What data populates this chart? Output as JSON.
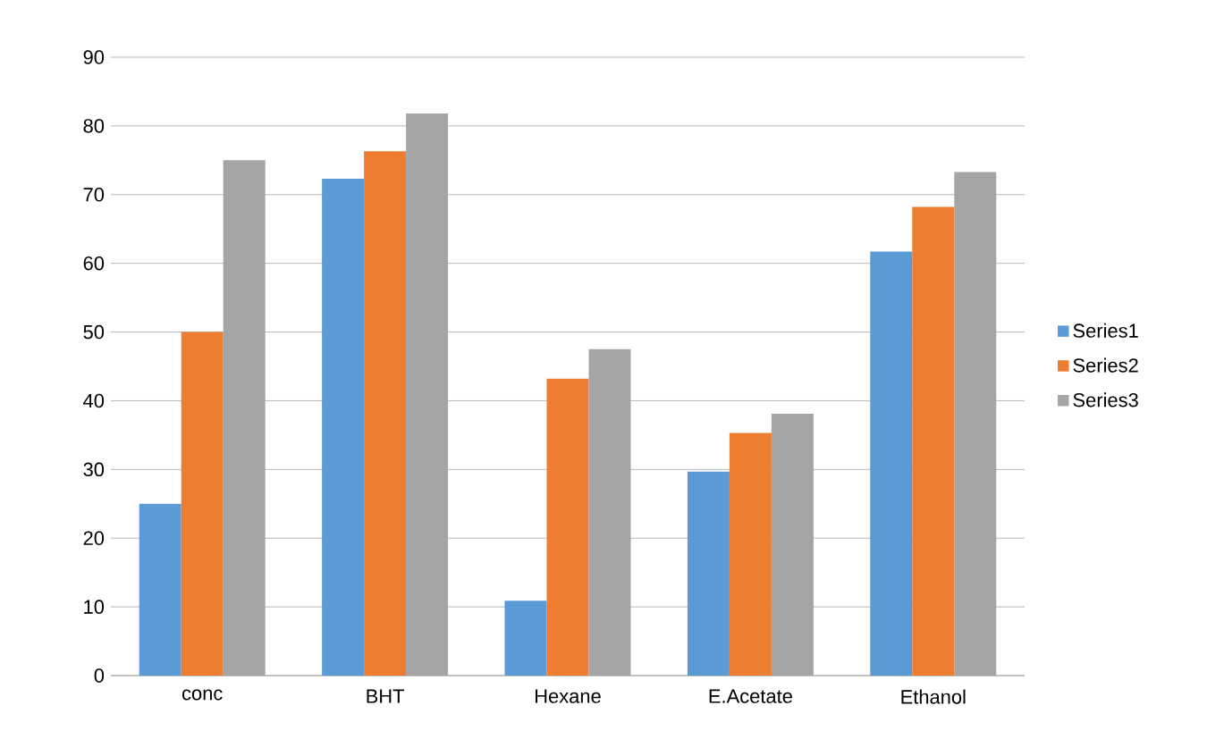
{
  "chart_data": {
    "type": "bar",
    "categories": [
      "conc",
      "BHT",
      "Hexane",
      "E.Acetate",
      "Ethanol"
    ],
    "series": [
      {
        "name": "Series1",
        "color": "#5b9bd5",
        "values": [
          25,
          72.3,
          10.9,
          29.7,
          61.7
        ]
      },
      {
        "name": "Series2",
        "color": "#ed7d31",
        "values": [
          50,
          76.3,
          43.2,
          35.3,
          68.2
        ]
      },
      {
        "name": "Series3",
        "color": "#a5a5a5",
        "values": [
          75,
          81.8,
          47.5,
          38.1,
          73.3
        ]
      }
    ],
    "ylim": [
      0,
      90
    ],
    "yticks": [
      0,
      10,
      20,
      30,
      40,
      50,
      60,
      70,
      80,
      90
    ],
    "grid": "y",
    "legend": "right"
  }
}
